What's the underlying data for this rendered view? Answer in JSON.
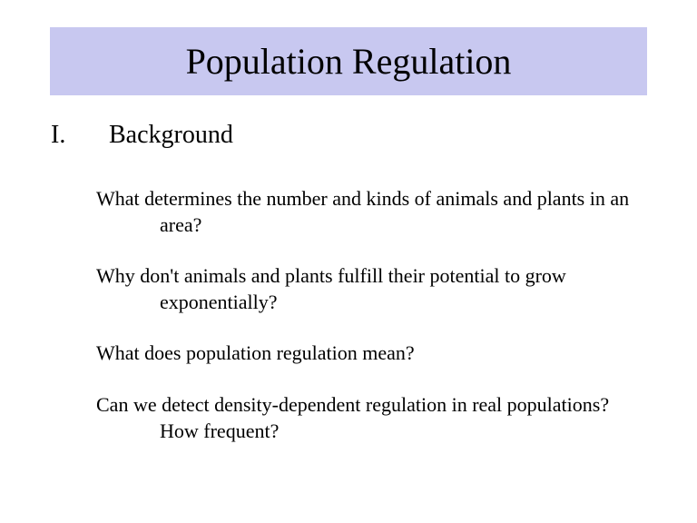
{
  "slide": {
    "title": "Population Regulation",
    "title_bg_color": "#c8c8f0",
    "title_fontsize": 40,
    "section": {
      "number": "I.",
      "label": "Background",
      "fontsize": 28
    },
    "questions": [
      "What determines the number and kinds of animals and plants in an area?",
      "Why don't animals and plants fulfill their potential to grow exponentially?",
      "What does population regulation mean?",
      "Can we detect density-dependent regulation in real populations?  How frequent?"
    ],
    "question_fontsize": 22,
    "background_color": "#ffffff",
    "text_color": "#000000"
  }
}
